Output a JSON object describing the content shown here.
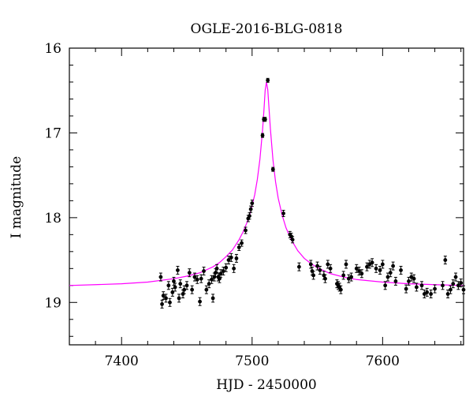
{
  "chart_data": {
    "type": "scatter",
    "title": "OGLE-2016-BLG-0818",
    "xlabel": "HJD - 2450000",
    "ylabel": "I magnitude",
    "xlim": [
      7360,
      7662
    ],
    "ylim": [
      16,
      19.5
    ],
    "y_inverted": true,
    "x_ticks": [
      7400,
      7500,
      7600
    ],
    "x_tick_labels": [
      "7400",
      "7500",
      "7600"
    ],
    "y_ticks": [
      16,
      17,
      18,
      19
    ],
    "y_tick_labels": [
      "16",
      "17",
      "18",
      "19"
    ],
    "grid": false,
    "legend": "none",
    "colors": {
      "points": "#000000",
      "model": "#ff00ff"
    },
    "model": {
      "name": "",
      "x": [
        7360,
        7380,
        7400,
        7420,
        7440,
        7450,
        7460,
        7470,
        7475,
        7480,
        7485,
        7490,
        7493,
        7496,
        7499,
        7502,
        7504,
        7506,
        7508,
        7509,
        7510,
        7511,
        7512,
        7513,
        7514,
        7516,
        7518,
        7520,
        7523,
        7526,
        7530,
        7535,
        7540,
        7545,
        7550,
        7560,
        7570,
        7580,
        7600,
        7620,
        7640,
        7662
      ],
      "y": [
        18.8,
        18.79,
        18.78,
        18.76,
        18.72,
        18.69,
        18.65,
        18.58,
        18.53,
        18.46,
        18.38,
        18.26,
        18.17,
        18.06,
        17.92,
        17.73,
        17.55,
        17.31,
        16.97,
        16.75,
        16.5,
        16.4,
        16.49,
        16.72,
        16.95,
        17.32,
        17.58,
        17.77,
        17.97,
        18.12,
        18.26,
        18.39,
        18.48,
        18.54,
        18.59,
        18.66,
        18.7,
        18.73,
        18.76,
        18.78,
        18.79,
        18.8
      ]
    },
    "series": [
      {
        "name": "",
        "x": [
          7430,
          7431,
          7432,
          7434,
          7436,
          7437,
          7439,
          7440,
          7441,
          7443,
          7444,
          7445,
          7447,
          7448,
          7450,
          7452,
          7454,
          7456,
          7458,
          7460,
          7461,
          7463,
          7465,
          7467,
          7469,
          7470,
          7471,
          7472,
          7473,
          7474,
          7475,
          7476,
          7478,
          7480,
          7482,
          7484,
          7486,
          7488,
          7490,
          7492,
          7495,
          7497,
          7498,
          7499,
          7500,
          7508,
          7509,
          7510,
          7512,
          7516,
          7524,
          7529,
          7530,
          7531,
          7536,
          7545,
          7546,
          7547,
          7550,
          7552,
          7555,
          7556,
          7558,
          7560,
          7565,
          7566,
          7567,
          7568,
          7570,
          7572,
          7574,
          7576,
          7580,
          7582,
          7584,
          7588,
          7590,
          7592,
          7595,
          7598,
          7600,
          7602,
          7604,
          7606,
          7608,
          7610,
          7614,
          7618,
          7620,
          7622,
          7624,
          7626,
          7630,
          7632,
          7634,
          7637,
          7640,
          7646,
          7648,
          7650,
          7652,
          7654,
          7656,
          7658,
          7660,
          7662
        ],
        "y": [
          18.7,
          19.02,
          18.92,
          18.95,
          18.8,
          19.0,
          18.88,
          18.75,
          18.82,
          18.62,
          18.95,
          18.78,
          18.9,
          18.85,
          18.8,
          18.65,
          18.85,
          18.7,
          18.73,
          18.99,
          18.72,
          18.63,
          18.85,
          18.78,
          18.73,
          18.95,
          18.7,
          18.65,
          18.6,
          18.7,
          18.72,
          18.66,
          18.63,
          18.59,
          18.5,
          18.47,
          18.6,
          18.48,
          18.35,
          18.3,
          18.15,
          18.01,
          17.98,
          17.9,
          17.83,
          17.03,
          16.84,
          16.84,
          16.38,
          17.43,
          17.95,
          18.2,
          18.22,
          18.26,
          18.58,
          18.55,
          18.63,
          18.68,
          18.57,
          18.62,
          18.68,
          18.72,
          18.55,
          18.6,
          18.78,
          18.8,
          18.82,
          18.85,
          18.68,
          18.55,
          18.72,
          18.7,
          18.6,
          18.63,
          18.66,
          18.58,
          18.55,
          18.53,
          18.6,
          18.62,
          18.55,
          18.8,
          18.7,
          18.65,
          18.57,
          18.75,
          18.62,
          18.84,
          18.75,
          18.7,
          18.72,
          18.82,
          18.8,
          18.9,
          18.88,
          18.9,
          18.84,
          18.8,
          18.5,
          18.9,
          18.85,
          18.78,
          18.7,
          18.8,
          18.77,
          18.85
        ]
      }
    ]
  }
}
